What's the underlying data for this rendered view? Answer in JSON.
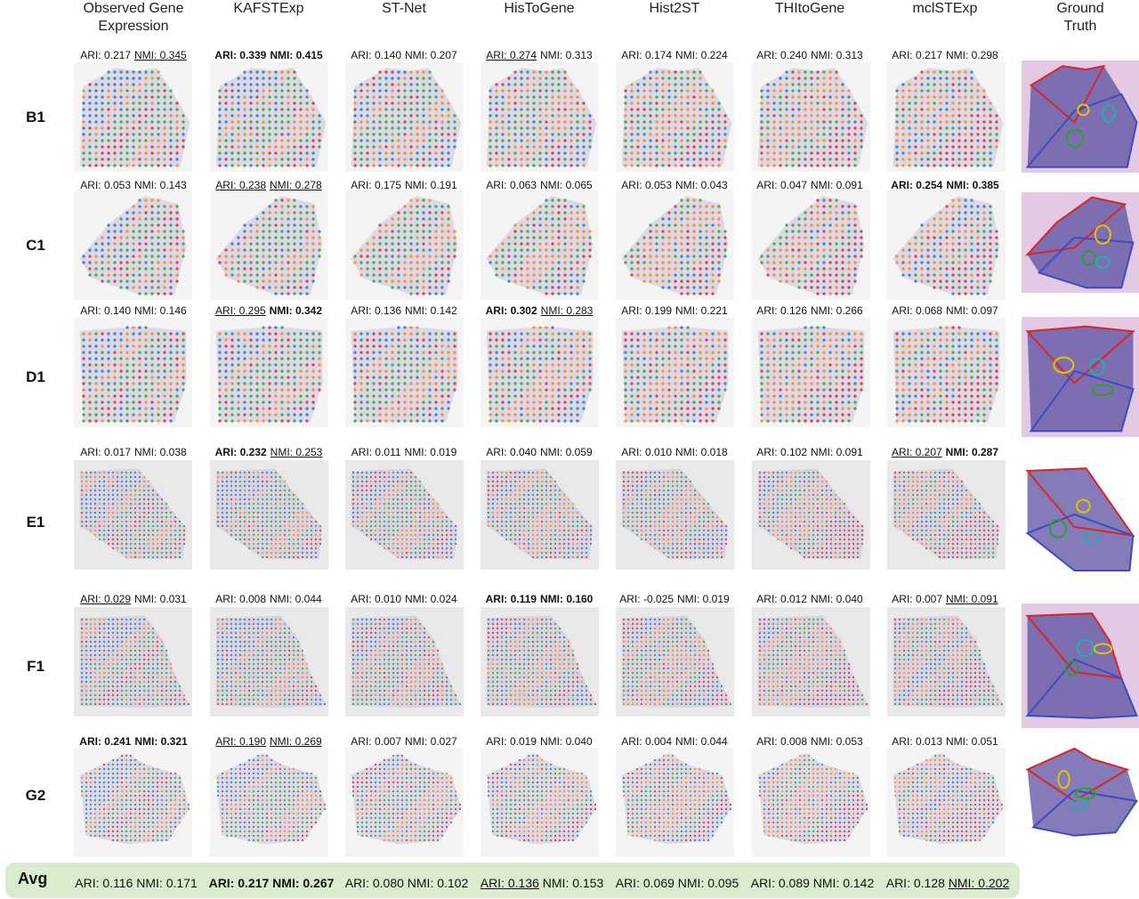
{
  "columns": [
    "Observed Gene\nExpression",
    "KAFSTExp",
    "ST-Net",
    "HisToGene",
    "Hist2ST",
    "THItoGene",
    "mclSTExp",
    "Ground\nTruth"
  ],
  "rows": [
    {
      "label": "B1",
      "metrics": [
        {
          "ari": "ARI: 0.217",
          "nmi": "NMI: 0.345",
          "ari_style": "",
          "nmi_style": "u"
        },
        {
          "ari": "ARI: 0.339",
          "nmi": "NMI: 0.415",
          "ari_style": "b",
          "nmi_style": "b"
        },
        {
          "ari": "ARI: 0.140",
          "nmi": "NMI: 0.207",
          "ari_style": "",
          "nmi_style": ""
        },
        {
          "ari": "ARI: 0.274",
          "nmi": "NMI: 0.313",
          "ari_style": "u",
          "nmi_style": ""
        },
        {
          "ari": "ARI: 0.174",
          "nmi": "NMI: 0.224",
          "ari_style": "",
          "nmi_style": ""
        },
        {
          "ari": "ARI: 0.240",
          "nmi": "NMI: 0.313",
          "ari_style": "",
          "nmi_style": ""
        },
        {
          "ari": "ARI: 0.217",
          "nmi": "NMI: 0.298",
          "ari_style": "",
          "nmi_style": ""
        }
      ]
    },
    {
      "label": "C1",
      "metrics": [
        {
          "ari": "ARI: 0.053",
          "nmi": "NMI: 0.143",
          "ari_style": "",
          "nmi_style": ""
        },
        {
          "ari": "ARI: 0.238",
          "nmi": "NMI: 0.278",
          "ari_style": "u",
          "nmi_style": "u"
        },
        {
          "ari": "ARI: 0.175",
          "nmi": "NMI: 0.191",
          "ari_style": "",
          "nmi_style": ""
        },
        {
          "ari": "ARI: 0.063",
          "nmi": "NMI: 0.065",
          "ari_style": "",
          "nmi_style": ""
        },
        {
          "ari": "ARI: 0.053",
          "nmi": "NMI: 0.043",
          "ari_style": "",
          "nmi_style": ""
        },
        {
          "ari": "ARI: 0.047",
          "nmi": "NMI: 0.091",
          "ari_style": "",
          "nmi_style": ""
        },
        {
          "ari": "ARI: 0.254",
          "nmi": "NMI: 0.385",
          "ari_style": "b",
          "nmi_style": "b"
        }
      ]
    },
    {
      "label": "D1",
      "metrics": [
        {
          "ari": "ARI: 0.140",
          "nmi": "NMI: 0.146",
          "ari_style": "",
          "nmi_style": ""
        },
        {
          "ari": "ARI: 0.295",
          "nmi": "NMI: 0.342",
          "ari_style": "u",
          "nmi_style": "b"
        },
        {
          "ari": "ARI: 0.136",
          "nmi": "NMI: 0.142",
          "ari_style": "",
          "nmi_style": ""
        },
        {
          "ari": "ARI: 0.302",
          "nmi": "NMI: 0.283",
          "ari_style": "b",
          "nmi_style": "u"
        },
        {
          "ari": "ARI: 0.199",
          "nmi": "NMI: 0.221",
          "ari_style": "",
          "nmi_style": ""
        },
        {
          "ari": "ARI: 0.126",
          "nmi": "NMI: 0.266",
          "ari_style": "",
          "nmi_style": ""
        },
        {
          "ari": "ARI: 0.068",
          "nmi": "NMI: 0.097",
          "ari_style": "",
          "nmi_style": ""
        }
      ]
    },
    {
      "label": "E1",
      "metrics": [
        {
          "ari": "ARI: 0.017",
          "nmi": "NMI: 0.038",
          "ari_style": "",
          "nmi_style": ""
        },
        {
          "ari": "ARI: 0.232",
          "nmi": "NMI: 0.253",
          "ari_style": "b",
          "nmi_style": "u"
        },
        {
          "ari": "ARI: 0.011",
          "nmi": "NMI: 0.019",
          "ari_style": "",
          "nmi_style": ""
        },
        {
          "ari": "ARI: 0.040",
          "nmi": "NMI: 0.059",
          "ari_style": "",
          "nmi_style": ""
        },
        {
          "ari": "ARI: 0.010",
          "nmi": "NMI: 0.018",
          "ari_style": "",
          "nmi_style": ""
        },
        {
          "ari": "ARI: 0.102",
          "nmi": "NMI: 0.091",
          "ari_style": "",
          "nmi_style": ""
        },
        {
          "ari": "ARI: 0.207",
          "nmi": "NMI: 0.287",
          "ari_style": "u",
          "nmi_style": "b"
        }
      ]
    },
    {
      "label": "F1",
      "metrics": [
        {
          "ari": "ARI: 0.029",
          "nmi": "NMI: 0.031",
          "ari_style": "u",
          "nmi_style": ""
        },
        {
          "ari": "ARI: 0.008",
          "nmi": "NMI: 0.044",
          "ari_style": "",
          "nmi_style": ""
        },
        {
          "ari": "ARI: 0.010",
          "nmi": "NMI: 0.024",
          "ari_style": "",
          "nmi_style": ""
        },
        {
          "ari": "ARI: 0.119",
          "nmi": "NMI: 0.160",
          "ari_style": "b",
          "nmi_style": "b"
        },
        {
          "ari": "ARI: -0.025",
          "nmi": "NMI: 0.019",
          "ari_style": "",
          "nmi_style": ""
        },
        {
          "ari": "ARI: 0.012",
          "nmi": "NMI: 0.040",
          "ari_style": "",
          "nmi_style": ""
        },
        {
          "ari": "ARI: 0.007",
          "nmi": "NMI: 0.091",
          "ari_style": "",
          "nmi_style": "u"
        }
      ]
    },
    {
      "label": "G2",
      "metrics": [
        {
          "ari": "ARI: 0.241",
          "nmi": "NMI: 0.321",
          "ari_style": "b",
          "nmi_style": "b"
        },
        {
          "ari": "ARI: 0.190",
          "nmi": "NMI: 0.269",
          "ari_style": "u",
          "nmi_style": "u"
        },
        {
          "ari": "ARI: 0.007",
          "nmi": "NMI: 0.027",
          "ari_style": "",
          "nmi_style": ""
        },
        {
          "ari": "ARI: 0.019",
          "nmi": "NMI: 0.040",
          "ari_style": "",
          "nmi_style": ""
        },
        {
          "ari": "ARI: 0.004",
          "nmi": "NMI: 0.044",
          "ari_style": "",
          "nmi_style": ""
        },
        {
          "ari": "ARI: 0.008",
          "nmi": "NMI: 0.053",
          "ari_style": "",
          "nmi_style": ""
        },
        {
          "ari": "ARI: 0.013",
          "nmi": "NMI: 0.051",
          "ari_style": "",
          "nmi_style": ""
        }
      ]
    }
  ],
  "avg": {
    "label": "Avg",
    "metrics": [
      {
        "ari": "ARI: 0.116",
        "nmi": "NMI: 0.171",
        "ari_style": "",
        "nmi_style": ""
      },
      {
        "ari": "ARI: 0.217",
        "nmi": "NMI: 0.267",
        "ari_style": "b",
        "nmi_style": "b"
      },
      {
        "ari": "ARI: 0.080",
        "nmi": "NMI: 0.102",
        "ari_style": "",
        "nmi_style": ""
      },
      {
        "ari": "ARI: 0.136",
        "nmi": "NMI: 0.153",
        "ari_style": "u",
        "nmi_style": ""
      },
      {
        "ari": "ARI: 0.069",
        "nmi": "NMI: 0.095",
        "ari_style": "",
        "nmi_style": ""
      },
      {
        "ari": "ARI: 0.089",
        "nmi": "NMI: 0.142",
        "ari_style": "",
        "nmi_style": ""
      },
      {
        "ari": "ARI: 0.128",
        "nmi": "NMI: 0.202",
        "ari_style": "",
        "nmi_style": "u"
      }
    ]
  },
  "colors": {
    "spot_palette": [
      "#1f77b4",
      "#ff7f0e",
      "#2ca02c",
      "#d62728"
    ],
    "avg_background": "#d9eccd",
    "tissue": "#c9c1dd",
    "gt_boundaries": [
      "#d62728",
      "#3b4cc0",
      "#2ca02c",
      "#e6c200",
      "#20b2aa"
    ]
  }
}
